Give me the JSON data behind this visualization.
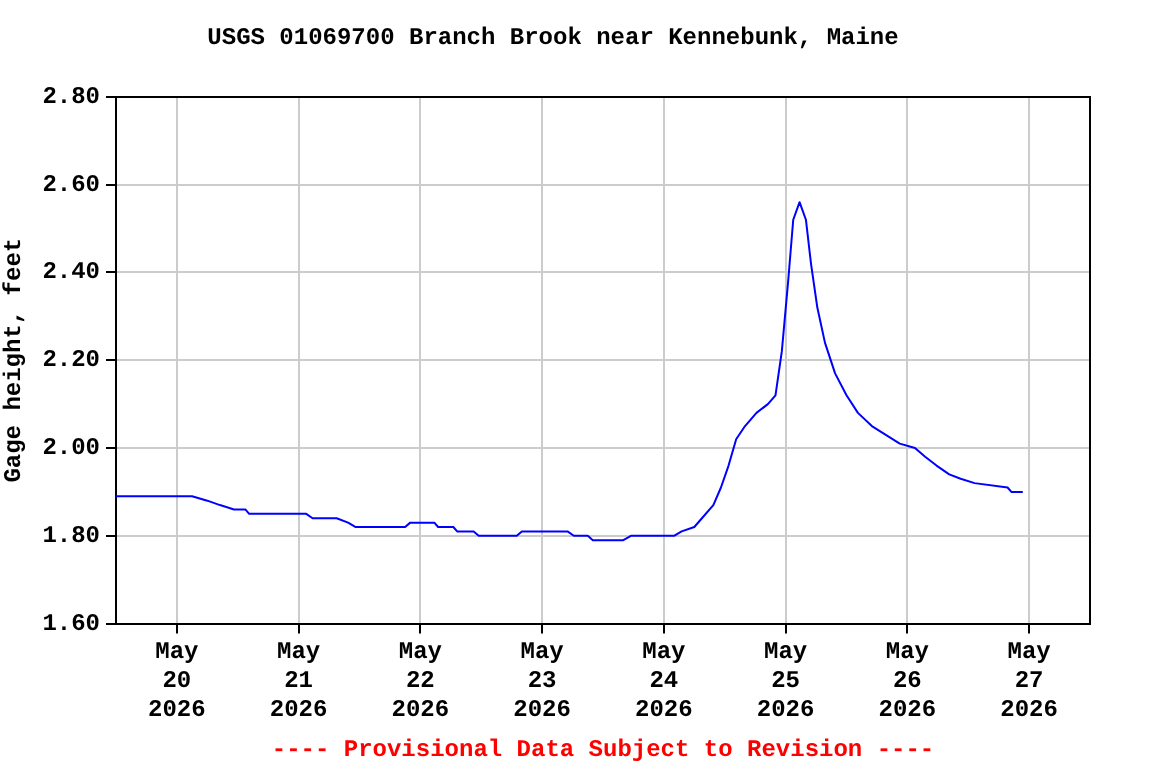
{
  "chart_data": {
    "type": "line",
    "title": "USGS 01069700 Branch Brook near Kennebunk, Maine",
    "ylabel": "Gage height, feet",
    "annotations": [
      "---- Provisional Data Subject to Revision ----"
    ],
    "x": [
      "2026-05-19T12:00",
      "2026-05-20T03:00",
      "2026-05-20T06:00",
      "2026-05-20T08:30",
      "2026-05-20T11:15",
      "2026-05-20T13:30",
      "2026-05-20T14:15",
      "2026-05-21T01:30",
      "2026-05-21T02:45",
      "2026-05-21T07:30",
      "2026-05-21T09:45",
      "2026-05-21T11:15",
      "2026-05-21T21:00",
      "2026-05-21T22:00",
      "2026-05-22T02:45",
      "2026-05-22T03:30",
      "2026-05-22T06:30",
      "2026-05-22T07:15",
      "2026-05-22T10:30",
      "2026-05-22T11:30",
      "2026-05-22T19:00",
      "2026-05-22T20:00",
      "2026-05-23T05:00",
      "2026-05-23T06:15",
      "2026-05-23T09:00",
      "2026-05-23T10:00",
      "2026-05-23T16:00",
      "2026-05-23T17:30",
      "2026-05-24T02:00",
      "2026-05-24T03:30",
      "2026-05-24T06:00",
      "2026-05-24T07:30",
      "2026-05-24T09:45",
      "2026-05-24T11:15",
      "2026-05-24T12:45",
      "2026-05-24T14:15",
      "2026-05-24T16:00",
      "2026-05-24T18:15",
      "2026-05-24T20:30",
      "2026-05-24T22:00",
      "2026-05-24T23:15",
      "2026-05-25T00:30",
      "2026-05-25T01:30",
      "2026-05-25T02:45",
      "2026-05-25T04:00",
      "2026-05-25T05:00",
      "2026-05-25T06:15",
      "2026-05-25T07:45",
      "2026-05-25T09:45",
      "2026-05-25T12:00",
      "2026-05-25T14:15",
      "2026-05-25T17:00",
      "2026-05-25T19:45",
      "2026-05-25T22:30",
      "2026-05-26T01:30",
      "2026-05-26T03:30",
      "2026-05-26T05:45",
      "2026-05-26T08:15",
      "2026-05-26T10:30",
      "2026-05-26T13:15",
      "2026-05-26T19:45",
      "2026-05-26T20:30",
      "2026-05-26T22:45"
    ],
    "series": [
      {
        "color": "#0000ff",
        "values": [
          1.89,
          1.89,
          1.88,
          1.87,
          1.86,
          1.86,
          1.85,
          1.85,
          1.84,
          1.84,
          1.83,
          1.82,
          1.82,
          1.83,
          1.83,
          1.82,
          1.82,
          1.81,
          1.81,
          1.8,
          1.8,
          1.81,
          1.81,
          1.8,
          1.8,
          1.79,
          1.79,
          1.8,
          1.8,
          1.81,
          1.82,
          1.84,
          1.87,
          1.91,
          1.96,
          2.02,
          2.05,
          2.08,
          2.1,
          2.12,
          2.22,
          2.38,
          2.52,
          2.56,
          2.52,
          2.42,
          2.32,
          2.24,
          2.17,
          2.12,
          2.08,
          2.05,
          2.03,
          2.01,
          2.0,
          1.98,
          1.96,
          1.94,
          1.93,
          1.92,
          1.91,
          1.9,
          1.9
        ]
      }
    ],
    "xlim": [
      "2026-05-19T12:00",
      "2026-05-27T12:00"
    ],
    "xticks": [
      {
        "value": "2026-05-20",
        "label": "May\n20\n2026"
      },
      {
        "value": "2026-05-21",
        "label": "May\n21\n2026"
      },
      {
        "value": "2026-05-22",
        "label": "May\n22\n2026"
      },
      {
        "value": "2026-05-23",
        "label": "May\n23\n2026"
      },
      {
        "value": "2026-05-24",
        "label": "May\n24\n2026"
      },
      {
        "value": "2026-05-25",
        "label": "May\n25\n2026"
      },
      {
        "value": "2026-05-26",
        "label": "May\n26\n2026"
      },
      {
        "value": "2026-05-27",
        "label": "May\n27\n2026"
      }
    ],
    "ylim": [
      1.6,
      2.8
    ],
    "yticks": [
      {
        "value": 1.6,
        "label": "1.60"
      },
      {
        "value": 1.8,
        "label": "1.80"
      },
      {
        "value": 2.0,
        "label": "2.00"
      },
      {
        "value": 2.2,
        "label": "2.20"
      },
      {
        "value": 2.4,
        "label": "2.40"
      },
      {
        "value": 2.6,
        "label": "2.60"
      },
      {
        "value": 2.8,
        "label": "2.80"
      }
    ],
    "grid": true,
    "legend": false,
    "marker": "none"
  }
}
